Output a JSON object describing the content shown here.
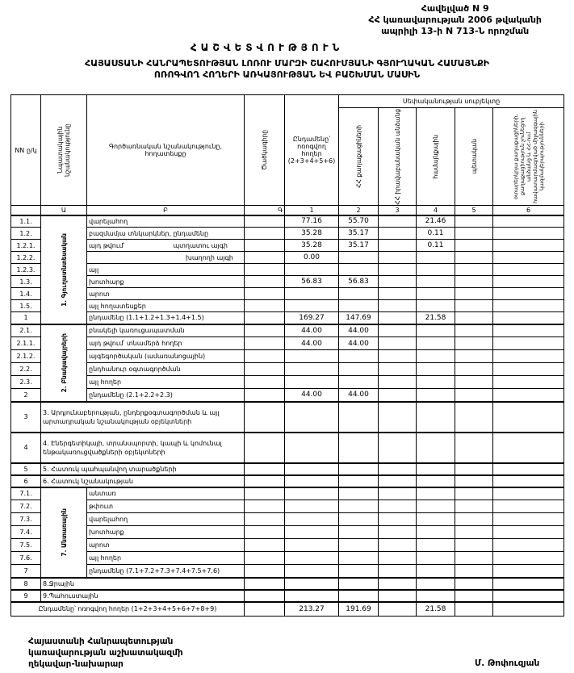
{
  "annex": {
    "line1": "Հավելված N 9",
    "line2": "ՀՀ կառավարության 2006 թվականի",
    "line3": "ապրիլի 13-ի N 713-Ն որոշման"
  },
  "title": "ՀԱՇՎԵՏՎՈՒԹՅՈՒՆ",
  "subtitle1": "ՀԱՅԱՍՏԱՆԻ ՀԱՆՐԱՊԵՏՈՒԹՅԱՆ ԼՈՌՈՒ ՄԱՐԶԻ ՇԱՀՈՒՄՅԱՆԻ ԳՅՈՒՂԱԿԱՆ ՀԱՄԱՅՆՔԻ",
  "subtitle2": "ՈՌՈԳՎՈՂ ՀՈՂԵՐԻ ԱՌԿԱՅՈՒԹՅԱՆ ԵՎ ԲԱՇԽՄԱՆ ՄԱՍԻՆ",
  "headers": {
    "nn": "NN ը/կ",
    "purpose": "Նպատակային նշանակությունը",
    "land_type": "Գործառնական նշանակությունը, հողատեսքը",
    "code": "Ծածկագիրը",
    "total": "Ընդամենը՝ ոռոգվող հողեր (2+3+4+5+6)",
    "ownership": "Սեփականության սուբյեկտը",
    "c2": "ՀՀ քաղաքացիների",
    "c3": "ՀՀ իրավաբանական անձանց",
    "c4": "համայնքային",
    "c5": "պետական",
    "c6": "օտարերկրյա քաղաքացիների, քաղաքացիություն չունեցող անձանց և ՀՀ-ում հավատարմագրված միջազգային կազմակերպությունների"
  },
  "letters": [
    "Ա",
    "Բ",
    "Գ",
    "1",
    "2",
    "3",
    "4",
    "5",
    "6"
  ],
  "groups": [
    {
      "label": "1. Գյուղատնտեսական",
      "rows": [
        {
          "nn": "1.1.",
          "desc": "վարելահող",
          "v": [
            "77.16",
            "55.70",
            "",
            "21.46",
            "",
            ""
          ]
        },
        {
          "nn": "1.2.",
          "desc": "բազմամյա տնկարկներ, ընդամենը",
          "v": [
            "35.28",
            "35.17",
            "",
            "0.11",
            "",
            ""
          ]
        },
        {
          "nn": "1.2.1.",
          "desc": "այդ թվում՝",
          "desc2": "պտղատու այգի",
          "v": [
            "35.28",
            "35.17",
            "",
            "0.11",
            "",
            ""
          ]
        },
        {
          "nn": "1.2.2.",
          "desc": "",
          "desc2": "խաղողի այգի",
          "v": [
            "0.00",
            "",
            "",
            "",
            "",
            ""
          ]
        },
        {
          "nn": "1.2.3.",
          "desc": "այլ",
          "v": [
            "",
            "",
            "",
            "",
            "",
            ""
          ]
        },
        {
          "nn": "1.3.",
          "desc": "խոտհարք",
          "v": [
            "56.83",
            "56.83",
            "",
            "",
            "",
            ""
          ]
        },
        {
          "nn": "1.4.",
          "desc": "արոտ",
          "v": [
            "",
            "",
            "",
            "",
            "",
            ""
          ]
        },
        {
          "nn": "1.5.",
          "desc": "այլ հողատեսքեր",
          "v": [
            "",
            "",
            "",
            "",
            "",
            ""
          ]
        },
        {
          "nn": "1",
          "desc": "ընդամենը (1.1+1.2+1.3+1.4+1.5)",
          "v": [
            "169.27",
            "147.69",
            "",
            "21.58",
            "",
            ""
          ]
        }
      ]
    },
    {
      "label": "2. Բնակավայրերի",
      "rows": [
        {
          "nn": "2.1.",
          "desc": "բնակելի կառուցապատման",
          "v": [
            "44.00",
            "44.00",
            "",
            "",
            "",
            ""
          ]
        },
        {
          "nn": "2.1.1.",
          "desc": "այդ թվում՝ տնամերձ հողեր",
          "v": [
            "44.00",
            "44.00",
            "",
            "",
            "",
            ""
          ]
        },
        {
          "nn": "2.1.2.",
          "desc": "այգեգործական (ամառանոցային)",
          "v": [
            "",
            "",
            "",
            "",
            "",
            ""
          ]
        },
        {
          "nn": "2.2.",
          "desc": "ընդհանուր օգտագործման",
          "v": [
            "",
            "",
            "",
            "",
            "",
            ""
          ]
        },
        {
          "nn": "2.3.",
          "desc": "այլ հողեր",
          "v": [
            "",
            "",
            "",
            "",
            "",
            ""
          ]
        },
        {
          "nn": "2",
          "desc": "ընդամենը (2.1+2.2+2.3)",
          "v": [
            "44.00",
            "44.00",
            "",
            "",
            "",
            ""
          ]
        }
      ]
    }
  ],
  "wide_rows": [
    {
      "nn": "3",
      "desc": "3. Արդյունաբերության, ընդերքօգտագործման և այլ արտադրական նշանակության օբյեկտների",
      "v": [
        "",
        "",
        "",
        "",
        "",
        ""
      ]
    },
    {
      "nn": "4",
      "desc": "4. Էներգետիկայի, տրանսպորտի, կապի և կոմունալ ենթակառուցվածքների օբյեկտների",
      "v": [
        "",
        "",
        "",
        "",
        "",
        ""
      ]
    },
    {
      "nn": "5",
      "desc": "5. Հատուկ պահպանվող տարածքների",
      "v": [
        "",
        "",
        "",
        "",
        "",
        ""
      ]
    },
    {
      "nn": "6",
      "desc": "6. Հատուկ նշանակության",
      "v": [
        "",
        "",
        "",
        "",
        "",
        ""
      ]
    }
  ],
  "forest": {
    "label": "7. Անտառային",
    "rows": [
      {
        "nn": "7.1.",
        "desc": "անտառ",
        "v": [
          "",
          "",
          "",
          "",
          "",
          ""
        ]
      },
      {
        "nn": "7.2.",
        "desc": "թփուտ",
        "v": [
          "",
          "",
          "",
          "",
          "",
          ""
        ]
      },
      {
        "nn": "7.3.",
        "desc": "վարելահող",
        "v": [
          "",
          "",
          "",
          "",
          "",
          ""
        ]
      },
      {
        "nn": "7.4.",
        "desc": "խոտհարք",
        "v": [
          "",
          "",
          "",
          "",
          "",
          ""
        ]
      },
      {
        "nn": "7.5.",
        "desc": "արոտ",
        "v": [
          "",
          "",
          "",
          "",
          "",
          ""
        ]
      },
      {
        "nn": "7.6.",
        "desc": "այլ հողեր",
        "v": [
          "",
          "",
          "",
          "",
          "",
          ""
        ]
      },
      {
        "nn": "7",
        "desc": "ընդամենը (7.1+7.2+7.3+7.4+7.5+7.6)",
        "v": [
          "",
          "",
          "",
          "",
          "",
          ""
        ]
      }
    ]
  },
  "tail_rows": [
    {
      "nn": "8",
      "desc": "8.Ջրային",
      "v": [
        "",
        "",
        "",
        "",
        "",
        ""
      ]
    },
    {
      "nn": "9",
      "desc": "9.Պահուստային",
      "v": [
        "",
        "",
        "",
        "",
        "",
        ""
      ]
    }
  ],
  "grand_total": {
    "desc": "Ընդամենը՝ ոռոգվող հողեր (1+2+3+4+5+6+7+8+9)",
    "v": [
      "213.27",
      "191.69",
      "",
      "21.58",
      "",
      ""
    ]
  },
  "footer": {
    "line1": "Հայաստանի Հանրապետության",
    "line2": "կառավարության աշխատակազմի",
    "line3": "ղեկավար-նախարար",
    "signature": "Մ. Թոփուզյան"
  }
}
